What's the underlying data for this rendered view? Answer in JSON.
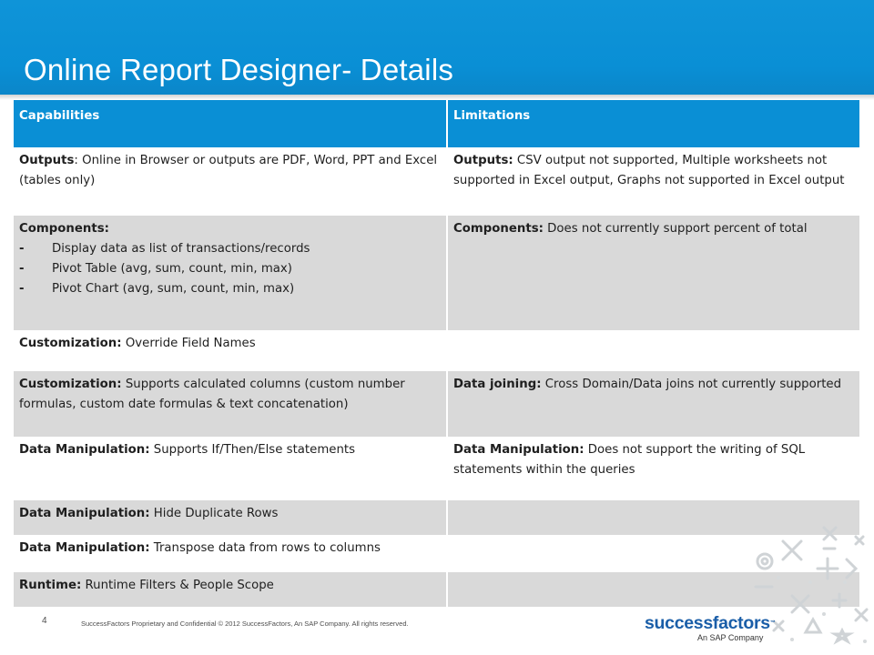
{
  "slide": {
    "title": "Online Report Designer- Details",
    "page_number": "4",
    "footer_text": "SuccessFactors Proprietary and Confidential   © 2012 SuccessFactors, An SAP Company.  All rights reserved."
  },
  "table": {
    "header": {
      "capabilities": "Capabilities",
      "limitations": "Limitations"
    },
    "rows": [
      {
        "left_bold": "Outputs",
        "left_text": ": Online in Browser or outputs are PDF, Word, PPT and Excel (tables only)",
        "right_bold": "Outputs:",
        "right_text": " CSV output not supported, Multiple worksheets not supported in Excel output, Graphs not supported in Excel output"
      },
      {
        "left_bold": "Components:",
        "left_items": [
          "Display data as list of transactions/records",
          "Pivot Table (avg, sum, count, min, max)",
          "Pivot Chart (avg, sum, count, min, max)"
        ],
        "right_bold": "Components:",
        "right_text": " Does not currently support percent of total"
      },
      {
        "left_bold": "Customization:",
        "left_text": " Override Field Names"
      },
      {
        "left_bold": "Customization:",
        "left_text": " Supports  calculated columns (custom number formulas, custom date formulas & text concatenation)",
        "right_bold": "Data joining:",
        "right_text": " Cross Domain/Data joins not currently supported"
      },
      {
        "left_bold": "Data Manipulation:",
        "left_text": " Supports If/Then/Else statements",
        "right_bold": "Data Manipulation:",
        "right_text": " Does not support the writing of SQL statements within the queries"
      },
      {
        "left_bold": "Data Manipulation:",
        "left_text": " Hide Duplicate Rows"
      },
      {
        "left_bold": "Data Manipulation:",
        "left_text": " Transpose data from rows to columns"
      },
      {
        "left_bold": "Runtime:",
        "left_text": " Runtime Filters & People Scope"
      }
    ]
  },
  "logo": {
    "word": "successfactors",
    "tm": "™",
    "subtitle": "An SAP Company"
  },
  "colors": {
    "brand_blue": "#0a8fd5",
    "row_gray": "#d9d9d9",
    "logo_blue": "#1a5ea8",
    "logo_red": "#e0261f"
  }
}
